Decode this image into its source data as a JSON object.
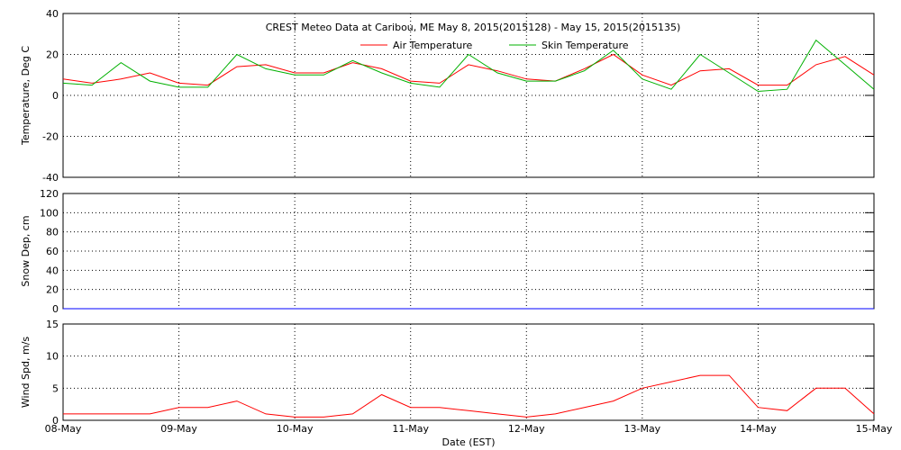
{
  "chart_data": [
    {
      "type": "line",
      "title": "CREST Meteo Data at Caribou, ME   May  8, 2015(2015128) - May 15, 2015(2015135)",
      "ylabel": "Temperature, Deg C",
      "x": [
        0,
        0.25,
        0.5,
        0.75,
        1,
        1.25,
        1.5,
        1.75,
        2,
        2.25,
        2.5,
        2.75,
        3,
        3.25,
        3.5,
        3.75,
        4,
        4.25,
        4.5,
        4.75,
        5,
        5.25,
        5.5,
        5.75,
        6,
        6.25,
        6.5,
        6.75,
        7
      ],
      "series": [
        {
          "name": "Air Temperature",
          "color": "#ff0000",
          "values": [
            8,
            6,
            8,
            11,
            6,
            5,
            14,
            15,
            11,
            11,
            16,
            13,
            7,
            6,
            15,
            12,
            8,
            7,
            13,
            20,
            10,
            5,
            12,
            13,
            5,
            5,
            15,
            19,
            10
          ]
        },
        {
          "name": "Skin Temperature",
          "color": "#00b000",
          "values": [
            6,
            5,
            16,
            7,
            4,
            4,
            20,
            13,
            10,
            10,
            17,
            11,
            6,
            4,
            20,
            11,
            7,
            7,
            12,
            22,
            8,
            3,
            20,
            11,
            2,
            3,
            27,
            15,
            3
          ]
        }
      ],
      "xlim": [
        0,
        7
      ],
      "xticks": [
        0,
        1,
        2,
        3,
        4,
        5,
        6,
        7
      ],
      "ylim": [
        -40,
        40
      ],
      "yticks": [
        -40,
        -20,
        0,
        20,
        40
      ],
      "grid": true
    },
    {
      "type": "line",
      "ylabel": "Snow Dep, cm",
      "x": [
        0,
        1,
        2,
        3,
        4,
        5,
        6,
        7
      ],
      "series": [
        {
          "color": "#0000ff",
          "values": [
            0,
            0,
            0,
            0,
            0,
            0,
            0,
            0
          ]
        }
      ],
      "xlim": [
        0,
        7
      ],
      "xticks": [
        0,
        1,
        2,
        3,
        4,
        5,
        6,
        7
      ],
      "ylim": [
        0,
        120
      ],
      "yticks": [
        0,
        20,
        40,
        60,
        80,
        100,
        120
      ],
      "grid": true
    },
    {
      "type": "line",
      "ylabel": "Wind Spd, m/s",
      "xlabel": "Date (EST)",
      "x": [
        0,
        0.25,
        0.5,
        0.75,
        1,
        1.25,
        1.5,
        1.75,
        2,
        2.25,
        2.5,
        2.75,
        3,
        3.25,
        3.5,
        3.75,
        4,
        4.25,
        4.5,
        4.75,
        5,
        5.25,
        5.5,
        5.75,
        6,
        6.25,
        6.5,
        6.75,
        7
      ],
      "series": [
        {
          "color": "#ff0000",
          "values": [
            1,
            1,
            1,
            1,
            2,
            2,
            3,
            1,
            0.5,
            0.5,
            1,
            4,
            2,
            2,
            1.5,
            1,
            0.5,
            1,
            2,
            3,
            5,
            6,
            7,
            7,
            2,
            1.5,
            5,
            5,
            1
          ]
        }
      ],
      "xlim": [
        0,
        7
      ],
      "xticks": [
        {
          "value": 0,
          "label": "08-May"
        },
        {
          "value": 1,
          "label": "09-May"
        },
        {
          "value": 2,
          "label": "10-May"
        },
        {
          "value": 3,
          "label": "11-May"
        },
        {
          "value": 4,
          "label": "12-May"
        },
        {
          "value": 5,
          "label": "13-May"
        },
        {
          "value": 6,
          "label": "14-May"
        },
        {
          "value": 7,
          "label": "15-May"
        }
      ],
      "ylim": [
        0,
        15
      ],
      "yticks": [
        0,
        5,
        10,
        15
      ],
      "grid": true
    }
  ]
}
